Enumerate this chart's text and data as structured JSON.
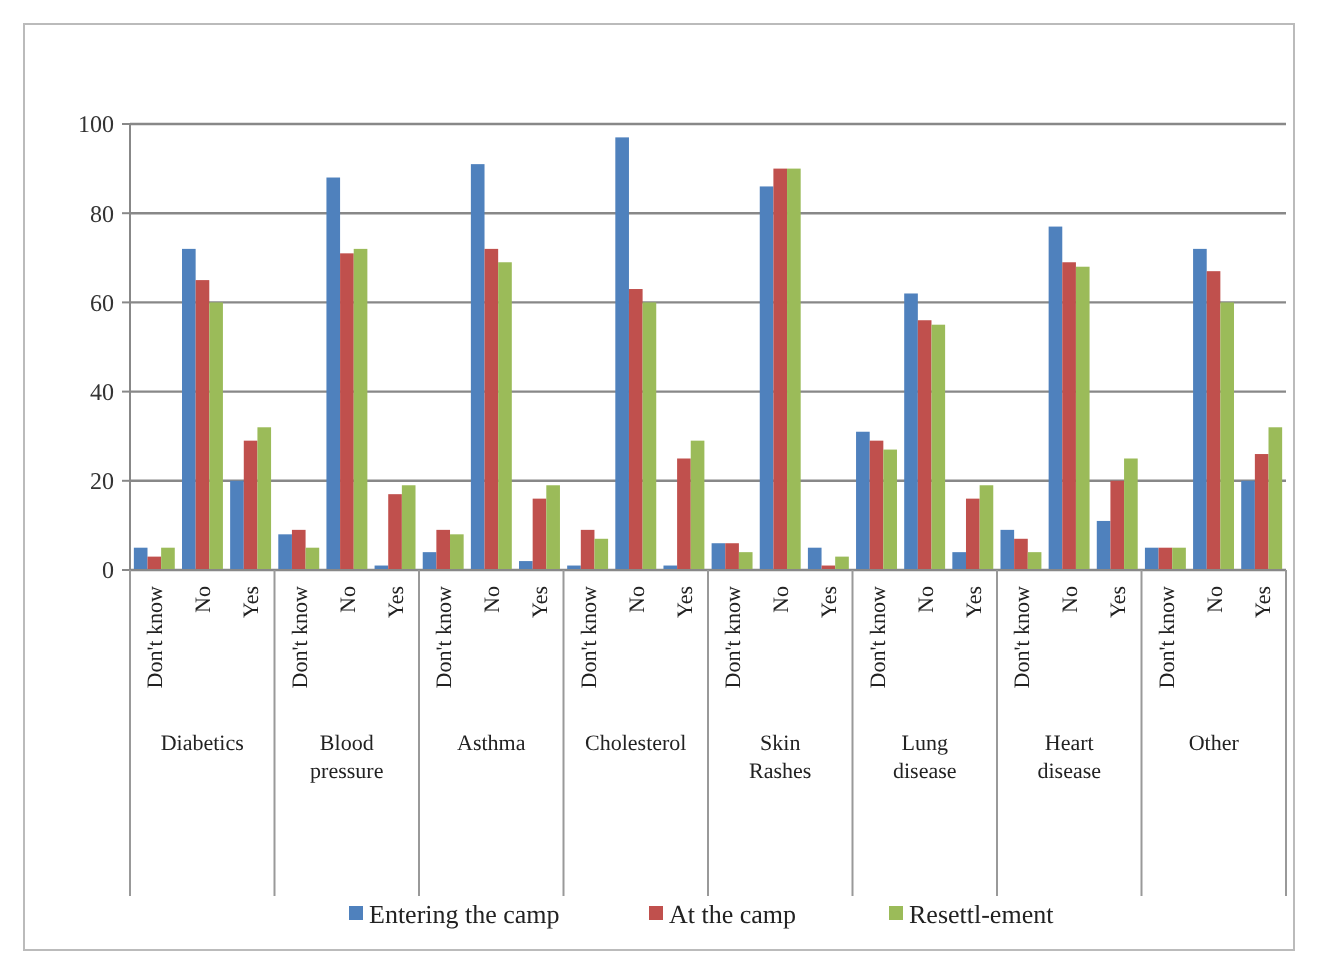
{
  "chart_data": {
    "type": "bar",
    "categories": [
      "Don't know",
      "No",
      "Yes",
      "Don't know",
      "No",
      "Yes",
      "Don't know",
      "No",
      "Yes",
      "Don't know",
      "No",
      "Yes",
      "Don't know",
      "No",
      "Yes",
      "Don't know",
      "No",
      "Yes",
      "Don't know",
      "No",
      "Yes",
      "Don't know",
      "No",
      "Yes"
    ],
    "series": [
      {
        "name": "Entering the camp",
        "color": "#4f81bd",
        "values": [
          5,
          72,
          20,
          8,
          88,
          1,
          4,
          91,
          2,
          1,
          97,
          1,
          6,
          86,
          5,
          31,
          62,
          4,
          9,
          77,
          11,
          5,
          72,
          20
        ]
      },
      {
        "name": "At the camp",
        "color": "#c0504d",
        "values": [
          3,
          65,
          29,
          9,
          71,
          17,
          9,
          72,
          16,
          9,
          63,
          25,
          6,
          90,
          1,
          29,
          56,
          16,
          7,
          69,
          20,
          5,
          67,
          26
        ]
      },
      {
        "name": "Resettl-ement",
        "color": "#9bbb59",
        "values": [
          5,
          60,
          32,
          5,
          72,
          19,
          8,
          69,
          19,
          7,
          60,
          29,
          4,
          90,
          3,
          27,
          55,
          19,
          4,
          68,
          25,
          5,
          60,
          32
        ]
      }
    ],
    "annotations": [
      "Diabetics",
      "Blood pressure",
      "Asthma",
      "Cholesterol",
      "Skin Rashes",
      "Lung disease",
      "Heart disease",
      "Other"
    ],
    "ylim": [
      0,
      100
    ],
    "yticks": [
      0,
      20,
      40,
      60,
      80,
      100
    ],
    "grid": "y",
    "legend": "bottom"
  }
}
